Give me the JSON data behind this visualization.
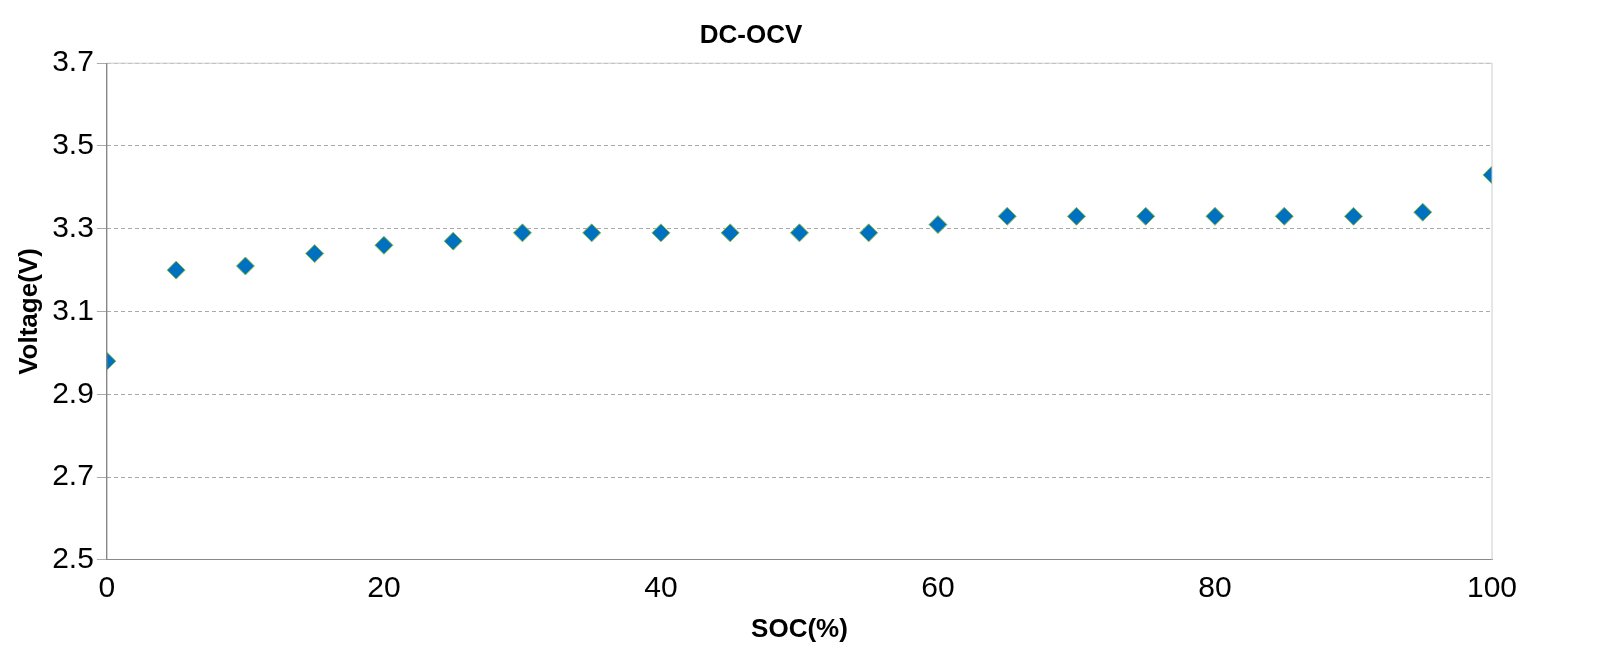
{
  "chart_data": {
    "type": "scatter",
    "title": "DC-OCV",
    "xlabel": "SOC(%)",
    "ylabel": "Voltage(V)",
    "x": [
      0,
      5,
      10,
      15,
      20,
      25,
      30,
      35,
      40,
      45,
      50,
      55,
      60,
      65,
      70,
      75,
      80,
      85,
      90,
      95,
      100
    ],
    "series": [
      {
        "color": "#0070c0",
        "values": [
          2.98,
          3.2,
          3.21,
          3.24,
          3.26,
          3.27,
          3.29,
          3.29,
          3.29,
          3.29,
          3.29,
          3.29,
          3.31,
          3.33,
          3.33,
          3.33,
          3.33,
          3.33,
          3.33,
          3.34,
          3.43
        ]
      }
    ],
    "xlim": [
      0,
      100
    ],
    "xticks": [
      0,
      20,
      40,
      60,
      80,
      100
    ],
    "ylim": [
      2.5,
      3.7
    ],
    "yticks": [
      2.5,
      2.7,
      2.9,
      3.1,
      3.3,
      3.5,
      3.7
    ],
    "grid": "y",
    "legend": false,
    "marker": "diamond"
  }
}
